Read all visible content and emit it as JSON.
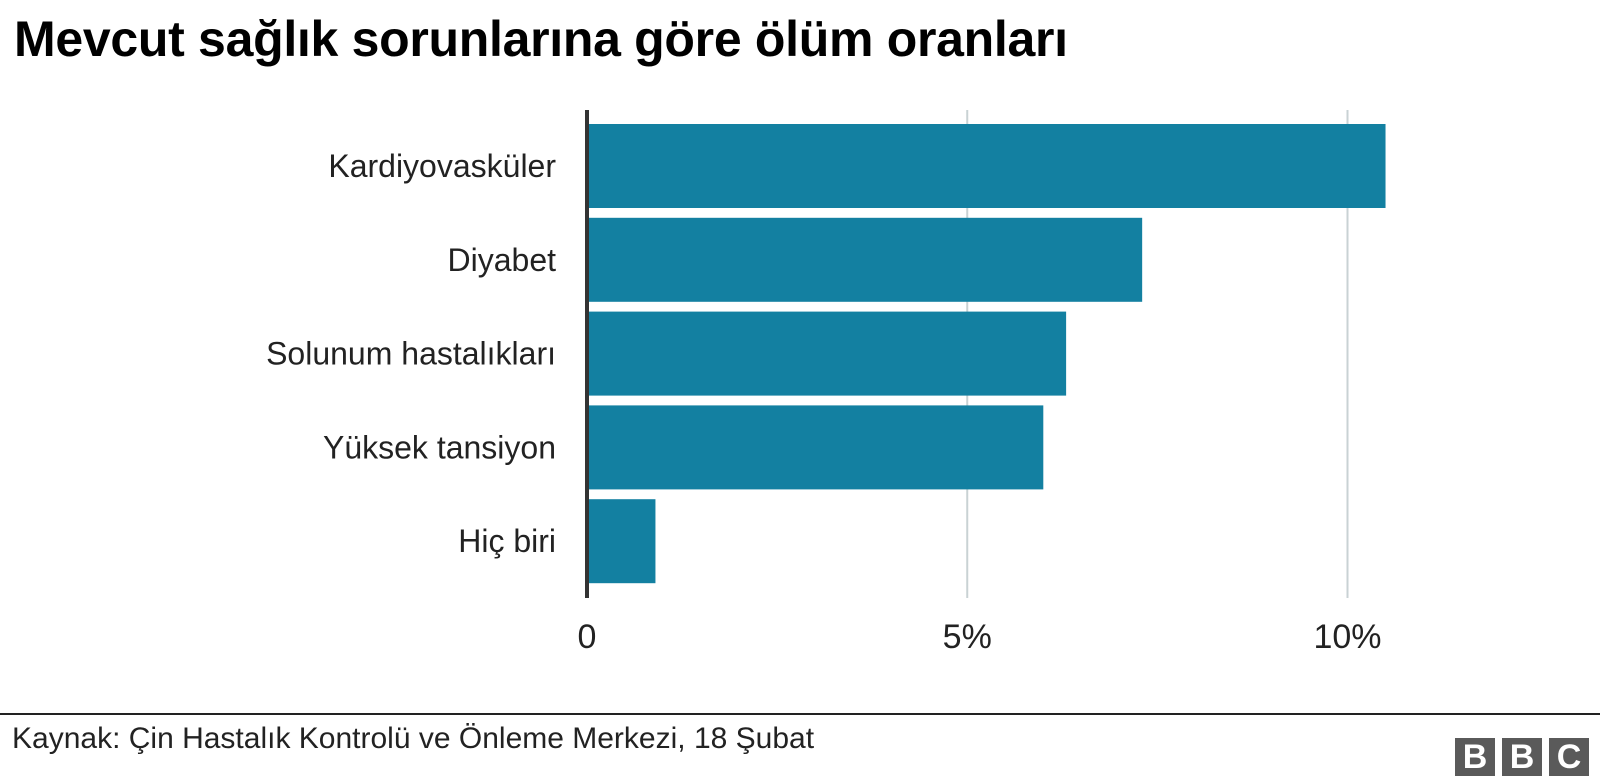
{
  "chart_data": {
    "type": "bar",
    "orientation": "horizontal",
    "title": "Mevcut sağlık sorunlarına göre ölüm oranları",
    "categories": [
      "Kardiyovasküler",
      "Diyabet",
      "Solunum hastalıkları",
      "Yüksek tansiyon",
      "Hiç biri"
    ],
    "values": [
      10.5,
      7.3,
      6.3,
      6.0,
      0.9
    ],
    "xlim": [
      0,
      12.3
    ],
    "xticks": [
      0,
      5,
      10
    ],
    "xtick_labels": [
      "0",
      "5%",
      "10%"
    ],
    "xlabel": "",
    "ylabel": "",
    "grid": "vertical",
    "bar_color": "#1380a1"
  },
  "footer": {
    "source": "Kaynak: Çin Hastalık Kontrolü ve Önleme Merkezi, 18 Şubat",
    "logo": [
      "B",
      "B",
      "C"
    ]
  }
}
